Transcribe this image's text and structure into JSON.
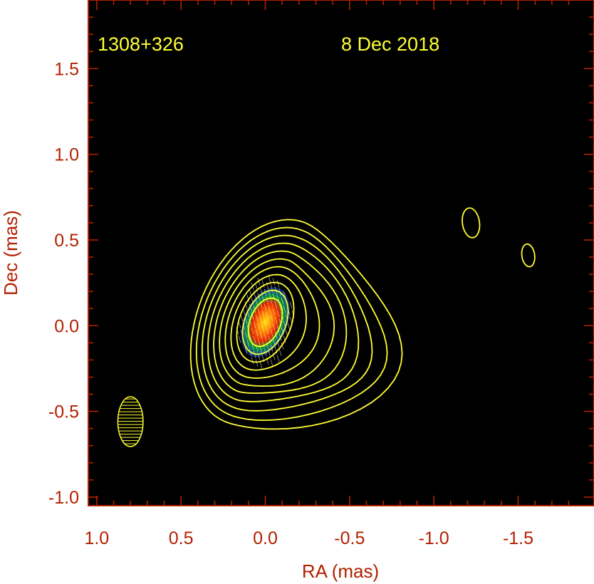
{
  "chart_data": {
    "type": "contour",
    "source_name": "1308+326",
    "date": "8 Dec 2018",
    "xlabel": "RA (mas)",
    "ylabel": "Dec (mas)",
    "xlim": [
      1.05,
      -1.95
    ],
    "ylim": [
      -1.05,
      1.9
    ],
    "x_reversed": true,
    "xticks": [
      1.0,
      0.5,
      0.0,
      -0.5,
      -1.0,
      -1.5
    ],
    "xtick_labels": [
      "1.0",
      "0.5",
      "0.0",
      "-0.5",
      "-1.0",
      "-1.5"
    ],
    "yticks": [
      1.5,
      1.0,
      0.5,
      0.0,
      -0.5,
      -1.0
    ],
    "ytick_labels": [
      "1.5",
      "1.0",
      "0.5",
      "0.0",
      "-0.5",
      "-1.0"
    ],
    "core": {
      "ra": 0.0,
      "dec": 0.02
    },
    "beam": {
      "ra": 0.8,
      "dec": -0.56,
      "major": 0.29,
      "minor": 0.15,
      "pa": 0
    },
    "isolated_components": [
      {
        "ra": -1.22,
        "dec": 0.6
      },
      {
        "ra": -1.56,
        "dec": 0.41
      }
    ],
    "colors": {
      "background": "#000000",
      "contour": "#ffff33",
      "axes": "#b22000",
      "annotation": "#ffff33"
    }
  }
}
